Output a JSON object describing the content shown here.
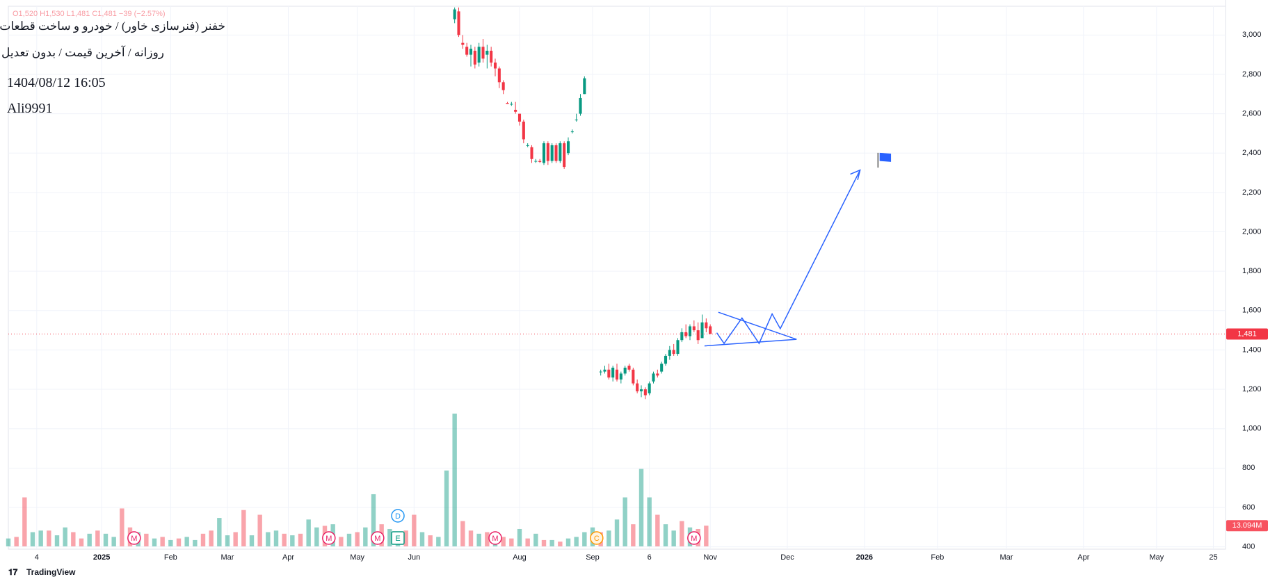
{
  "chart_data": {
    "type": "candlestick",
    "legend_line": "O1,520 H1,530 L1,481 C1,481 −39 (−2.57%)",
    "title": "خفنر (فنرسازی خاور) / خودرو و ساخت قطعات",
    "subtitle": "روزانه / آخرین قیمت / بدون تعدیل",
    "timestamp": "1404/08/12 16:05",
    "author": "Ali9991",
    "brand": "TradingView",
    "up_color": "#089981",
    "down_color": "#f23645",
    "grid": true,
    "ylim": [
      388,
      3146
    ],
    "yticks": [
      400,
      600,
      800,
      {
        "value": 1000,
        "label": "1,000"
      },
      {
        "value": 1200,
        "label": "1,200"
      },
      {
        "value": 1400,
        "label": "1,400"
      },
      {
        "value": 1600,
        "label": "1,600"
      },
      {
        "value": 1800,
        "label": "1,800"
      },
      {
        "value": 2000,
        "label": "2,000"
      },
      {
        "value": 2200,
        "label": "2,200"
      },
      {
        "value": 2400,
        "label": "2,400"
      },
      {
        "value": 2600,
        "label": "2,600"
      },
      {
        "value": 2800,
        "label": "2,800"
      },
      {
        "value": 3000,
        "label": "3,000"
      }
    ],
    "xlim": [
      0,
      300
    ],
    "xticks": [
      {
        "value": 7,
        "label": "4"
      },
      {
        "value": 23,
        "label": "2025"
      },
      {
        "value": 40,
        "label": "Feb"
      },
      {
        "value": 54,
        "label": "Mar"
      },
      {
        "value": 69,
        "label": "Apr"
      },
      {
        "value": 86,
        "label": "May"
      },
      {
        "value": 100,
        "label": "Jun"
      },
      {
        "value": 126,
        "label": "Aug"
      },
      {
        "value": 144,
        "label": "Sep"
      },
      {
        "value": 158,
        "label": "6"
      },
      {
        "value": 173,
        "label": "Nov"
      },
      {
        "value": 192,
        "label": "Dec"
      },
      {
        "value": 211,
        "label": "2026"
      },
      {
        "value": 229,
        "label": "Feb"
      },
      {
        "value": 246,
        "label": "Mar"
      },
      {
        "value": 265,
        "label": "Apr"
      },
      {
        "value": 283,
        "label": "May"
      },
      {
        "value": 297,
        "label": "25"
      }
    ],
    "candles": [
      {
        "x": 110,
        "open": 3080,
        "high": 3140,
        "low": 3060,
        "close": 3130
      },
      {
        "x": 111,
        "open": 3120,
        "high": 3140,
        "low": 2990,
        "close": 3000
      },
      {
        "x": 112,
        "open": 2960,
        "high": 3000,
        "low": 2930,
        "close": 2950
      },
      {
        "x": 113,
        "open": 2940,
        "high": 2960,
        "low": 2890,
        "close": 2900
      },
      {
        "x": 114,
        "open": 2900,
        "high": 2950,
        "low": 2840,
        "close": 2930
      },
      {
        "x": 115,
        "open": 2920,
        "high": 2940,
        "low": 2830,
        "close": 2850
      },
      {
        "x": 116,
        "open": 2860,
        "high": 2960,
        "low": 2840,
        "close": 2940
      },
      {
        "x": 117,
        "open": 2940,
        "high": 2980,
        "low": 2860,
        "close": 2880
      },
      {
        "x": 118,
        "open": 2900,
        "high": 2950,
        "low": 2830,
        "close": 2920
      },
      {
        "x": 119,
        "open": 2920,
        "high": 2940,
        "low": 2840,
        "close": 2860
      },
      {
        "x": 120,
        "open": 2860,
        "high": 2880,
        "low": 2790,
        "close": 2830
      },
      {
        "x": 121,
        "open": 2830,
        "high": 2840,
        "low": 2730,
        "close": 2760
      },
      {
        "x": 122,
        "open": 2760,
        "high": 2770,
        "low": 2700,
        "close": 2720
      },
      {
        "x": 123,
        "open": 2655,
        "high": 2660,
        "low": 2650,
        "close": 2650
      },
      {
        "x": 124,
        "open": 2650,
        "high": 2660,
        "low": 2640,
        "close": 2650
      },
      {
        "x": 125,
        "open": 2620,
        "high": 2660,
        "low": 2600,
        "close": 2610
      },
      {
        "x": 126,
        "open": 2600,
        "high": 2600,
        "low": 2540,
        "close": 2560
      },
      {
        "x": 127,
        "open": 2560,
        "high": 2570,
        "low": 2450,
        "close": 2470
      },
      {
        "x": 128,
        "open": 2440,
        "high": 2450,
        "low": 2430,
        "close": 2440
      },
      {
        "x": 129,
        "open": 2430,
        "high": 2440,
        "low": 2350,
        "close": 2370
      },
      {
        "x": 130,
        "open": 2360,
        "high": 2370,
        "low": 2350,
        "close": 2360
      },
      {
        "x": 131,
        "open": 2360,
        "high": 2370,
        "low": 2350,
        "close": 2355
      },
      {
        "x": 132,
        "open": 2350,
        "high": 2460,
        "low": 2340,
        "close": 2450
      },
      {
        "x": 133,
        "open": 2450,
        "high": 2460,
        "low": 2340,
        "close": 2360
      },
      {
        "x": 134,
        "open": 2360,
        "high": 2450,
        "low": 2350,
        "close": 2440
      },
      {
        "x": 135,
        "open": 2440,
        "high": 2450,
        "low": 2350,
        "close": 2360
      },
      {
        "x": 136,
        "open": 2360,
        "high": 2460,
        "low": 2350,
        "close": 2450
      },
      {
        "x": 137,
        "open": 2450,
        "high": 2460,
        "low": 2320,
        "close": 2330
      },
      {
        "x": 138,
        "open": 2400,
        "high": 2480,
        "low": 2390,
        "close": 2460
      },
      {
        "x": 139,
        "open": 2510,
        "high": 2520,
        "low": 2500,
        "close": 2510
      },
      {
        "x": 140,
        "open": 2570,
        "high": 2600,
        "low": 2560,
        "close": 2570
      },
      {
        "x": 141,
        "open": 2600,
        "high": 2700,
        "low": 2590,
        "close": 2680
      },
      {
        "x": 142,
        "open": 2700,
        "high": 2790,
        "low": 2700,
        "close": 2780
      },
      {
        "x": 146,
        "open": 1290,
        "high": 1300,
        "low": 1270,
        "close": 1290
      },
      {
        "x": 147,
        "open": 1290,
        "high": 1320,
        "low": 1280,
        "close": 1300
      },
      {
        "x": 148,
        "open": 1300,
        "high": 1330,
        "low": 1250,
        "close": 1260
      },
      {
        "x": 149,
        "open": 1260,
        "high": 1320,
        "low": 1240,
        "close": 1310
      },
      {
        "x": 150,
        "open": 1300,
        "high": 1330,
        "low": 1240,
        "close": 1250
      },
      {
        "x": 151,
        "open": 1250,
        "high": 1290,
        "low": 1230,
        "close": 1280
      },
      {
        "x": 152,
        "open": 1280,
        "high": 1320,
        "low": 1270,
        "close": 1310
      },
      {
        "x": 153,
        "open": 1320,
        "high": 1330,
        "low": 1290,
        "close": 1300
      },
      {
        "x": 154,
        "open": 1300,
        "high": 1310,
        "low": 1220,
        "close": 1230
      },
      {
        "x": 155,
        "open": 1230,
        "high": 1250,
        "low": 1180,
        "close": 1190
      },
      {
        "x": 156,
        "open": 1190,
        "high": 1220,
        "low": 1160,
        "close": 1200
      },
      {
        "x": 157,
        "open": 1200,
        "high": 1210,
        "low": 1150,
        "close": 1170
      },
      {
        "x": 158,
        "open": 1180,
        "high": 1240,
        "low": 1170,
        "close": 1230
      },
      {
        "x": 159,
        "open": 1240,
        "high": 1290,
        "low": 1230,
        "close": 1280
      },
      {
        "x": 160,
        "open": 1280,
        "high": 1300,
        "low": 1260,
        "close": 1270
      },
      {
        "x": 161,
        "open": 1290,
        "high": 1340,
        "low": 1280,
        "close": 1330
      },
      {
        "x": 162,
        "open": 1330,
        "high": 1380,
        "low": 1320,
        "close": 1370
      },
      {
        "x": 163,
        "open": 1370,
        "high": 1420,
        "low": 1350,
        "close": 1400
      },
      {
        "x": 164,
        "open": 1400,
        "high": 1430,
        "low": 1370,
        "close": 1380
      },
      {
        "x": 165,
        "open": 1380,
        "high": 1460,
        "low": 1370,
        "close": 1450
      },
      {
        "x": 166,
        "open": 1450,
        "high": 1510,
        "low": 1440,
        "close": 1490
      },
      {
        "x": 167,
        "open": 1490,
        "high": 1530,
        "low": 1460,
        "close": 1470
      },
      {
        "x": 168,
        "open": 1470,
        "high": 1530,
        "low": 1450,
        "close": 1520
      },
      {
        "x": 169,
        "open": 1520,
        "high": 1550,
        "low": 1490,
        "close": 1500
      },
      {
        "x": 170,
        "open": 1500,
        "high": 1540,
        "low": 1430,
        "close": 1450
      },
      {
        "x": 171,
        "open": 1460,
        "high": 1580,
        "low": 1460,
        "close": 1540
      },
      {
        "x": 172,
        "open": 1540,
        "high": 1560,
        "low": 1490,
        "close": 1510
      },
      {
        "x": 173,
        "open": 1520,
        "high": 1530,
        "low": 1481,
        "close": 1481
      }
    ],
    "last_price_label": "1,481",
    "volume": {
      "x": [
        0,
        2,
        4,
        6,
        8,
        10,
        12,
        14,
        16,
        18,
        20,
        22,
        24,
        26,
        28,
        30,
        32,
        34,
        36,
        38,
        40,
        42,
        44,
        46,
        48,
        50,
        52,
        54,
        56,
        58,
        60,
        62,
        64,
        66,
        68,
        70,
        72,
        74,
        76,
        78,
        80,
        82,
        84,
        86,
        88,
        90,
        92,
        94,
        96,
        98,
        100,
        102,
        104,
        106,
        108,
        110,
        112,
        114,
        116,
        118,
        120,
        122,
        124,
        126,
        128,
        130,
        132,
        134,
        136,
        138,
        140,
        142,
        144,
        146,
        148,
        150,
        152,
        154,
        156,
        158,
        160,
        162,
        164,
        166,
        168,
        170,
        172
      ],
      "values": [
        5,
        6,
        31,
        9,
        10,
        10,
        7,
        12,
        9,
        5,
        8,
        10,
        8,
        6,
        24,
        12,
        9,
        8,
        5,
        6,
        4,
        5,
        6,
        4,
        8,
        10,
        18,
        7,
        9,
        23,
        7,
        20,
        9,
        10,
        8,
        7,
        8,
        17,
        12,
        13,
        14,
        6,
        8,
        9,
        12,
        33,
        14,
        11,
        8,
        10,
        20,
        9,
        7,
        6,
        48,
        84,
        16,
        10,
        8,
        9,
        7,
        6,
        5,
        11,
        5,
        8,
        4,
        4,
        3,
        5,
        6,
        9,
        12,
        9,
        10,
        17,
        31,
        14,
        49,
        31,
        20,
        14,
        10,
        16,
        12,
        11,
        13.094
      ],
      "dirs": [
        "up",
        "down",
        "down",
        "up",
        "up",
        "down",
        "up",
        "up",
        "down",
        "down",
        "up",
        "down",
        "up",
        "up",
        "down",
        "down",
        "up",
        "down",
        "up",
        "down",
        "up",
        "down",
        "up",
        "up",
        "down",
        "down",
        "up",
        "up",
        "down",
        "down",
        "up",
        "down",
        "up",
        "up",
        "down",
        "up",
        "down",
        "up",
        "up",
        "down",
        "up",
        "down",
        "up",
        "down",
        "up",
        "up",
        "down",
        "up",
        "up",
        "down",
        "down",
        "up",
        "down",
        "up",
        "up",
        "up",
        "down",
        "down",
        "up",
        "down",
        "up",
        "down",
        "down",
        "up",
        "down",
        "up",
        "down",
        "up",
        "down",
        "up",
        "up",
        "up",
        "up",
        "down",
        "up",
        "up",
        "up",
        "down",
        "up",
        "up",
        "down",
        "up",
        "up",
        "down",
        "up",
        "down",
        "down"
      ],
      "label": "13.094M"
    },
    "events": [
      {
        "x": 31,
        "label": "M"
      },
      {
        "x": 79,
        "label": "M"
      },
      {
        "x": 91,
        "label": "M"
      },
      {
        "x": 96,
        "label": "E"
      },
      {
        "x": 120,
        "label": "M"
      },
      {
        "x": 145,
        "label": "C"
      },
      {
        "x": 169,
        "label": "M"
      },
      {
        "x": 96,
        "label": "D"
      }
    ]
  }
}
